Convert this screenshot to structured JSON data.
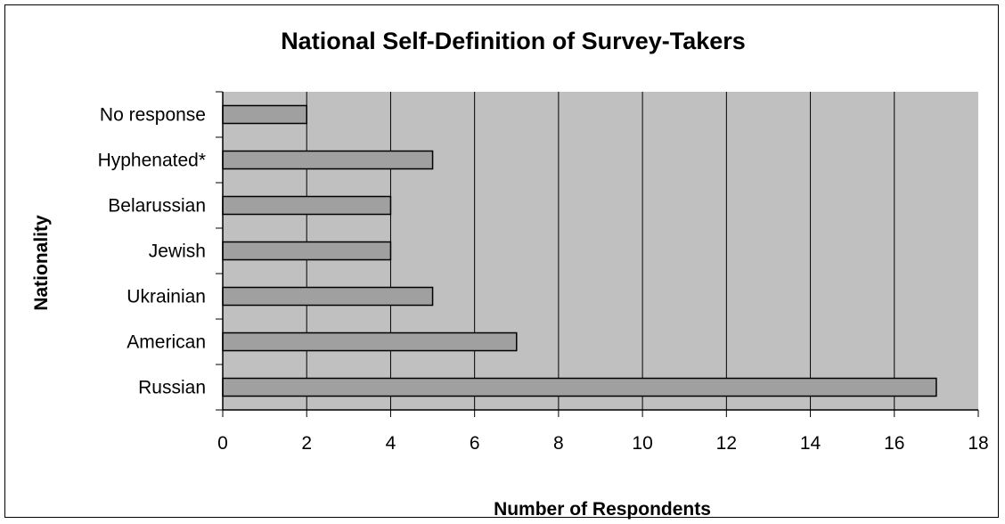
{
  "chart_data": {
    "type": "bar",
    "orientation": "horizontal",
    "title": "National Self-Definition of Survey-Takers",
    "xlabel": "Number of Respondents",
    "ylabel": "Nationality",
    "categories": [
      "Russian",
      "American",
      "Ukrainian",
      "Jewish",
      "Belarussian",
      "Hyphenated*",
      "No response"
    ],
    "values": [
      17,
      7,
      5,
      4,
      4,
      5,
      2
    ],
    "xlim": [
      0,
      18
    ],
    "xticks": [
      0,
      2,
      4,
      6,
      8,
      10,
      12,
      14,
      16,
      18
    ],
    "grid": "vertical",
    "legend": "none",
    "colors": {
      "plot_background": "#c0c0c0",
      "bar_fill": "#a0a0a0",
      "bar_stroke": "#000000",
      "grid": "#000000"
    }
  }
}
